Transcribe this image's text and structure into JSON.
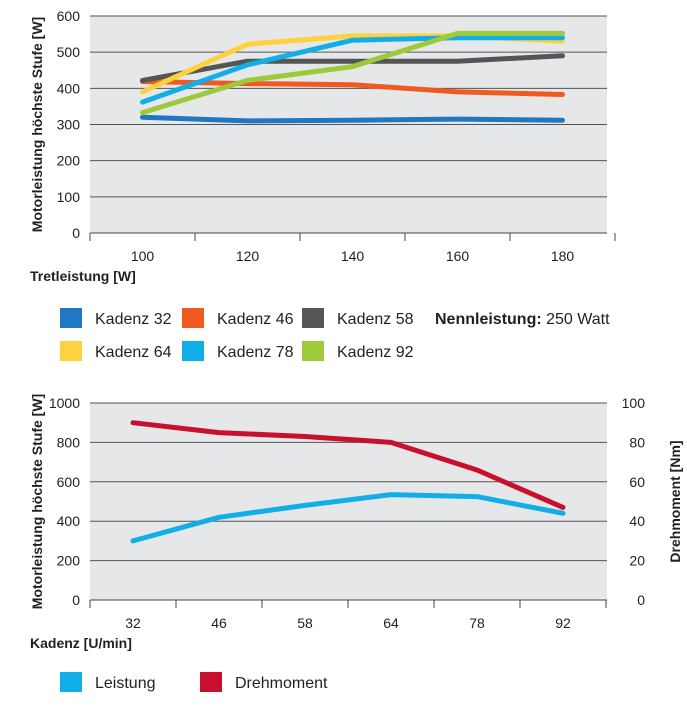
{
  "chart_data": [
    {
      "type": "line",
      "xlabel": "Tretleistung [W]",
      "ylabel": "Motorleistung höchste Stufe [W]",
      "categories": [
        "100",
        "120",
        "140",
        "160",
        "180"
      ],
      "yticks": [
        "0",
        "100",
        "200",
        "300",
        "400",
        "500",
        "600"
      ],
      "ylim": [
        0,
        600
      ],
      "grid": true,
      "legend_position": "bottom",
      "note": {
        "bold": "Nennleistung:",
        "text": "250 Watt"
      },
      "series": [
        {
          "name": "Kadenz 32",
          "color": "#1f78c1",
          "values": [
            320,
            310,
            312,
            315,
            312
          ]
        },
        {
          "name": "Kadenz 46",
          "color": "#f05a22",
          "values": [
            419,
            413,
            410,
            390,
            383
          ]
        },
        {
          "name": "Kadenz 58",
          "color": "#555555",
          "values": [
            422,
            475,
            475,
            475,
            490
          ]
        },
        {
          "name": "Kadenz 64",
          "color": "#fdd23e",
          "values": [
            390,
            522,
            545,
            545,
            530
          ]
        },
        {
          "name": "Kadenz 78",
          "color": "#12aee8",
          "values": [
            362,
            465,
            533,
            540,
            540
          ]
        },
        {
          "name": "Kadenz 92",
          "color": "#9dc93b",
          "values": [
            333,
            422,
            460,
            552,
            552
          ]
        }
      ]
    },
    {
      "type": "line",
      "xlabel": "Kadenz [U/min]",
      "ylabel": "Motorleistung höchste Stufe [W]",
      "ylabel_right": "Drehmoment [Nm]",
      "categories": [
        "32",
        "46",
        "58",
        "64",
        "78",
        "92"
      ],
      "yticks": [
        "0",
        "200",
        "400",
        "600",
        "800",
        "1000"
      ],
      "yticks_right": [
        "0",
        "20",
        "40",
        "60",
        "80",
        "100"
      ],
      "ylim": [
        0,
        1000
      ],
      "ylim_right": [
        0,
        100
      ],
      "grid": true,
      "legend_position": "bottom",
      "series": [
        {
          "name": "Leistung",
          "color": "#12aee8",
          "axis": "left",
          "values": [
            300,
            420,
            480,
            535,
            525,
            440
          ]
        },
        {
          "name": "Drehmoment",
          "color": "#c8102e",
          "axis": "right",
          "values": [
            90,
            85,
            83,
            80,
            66,
            47
          ]
        }
      ]
    }
  ]
}
